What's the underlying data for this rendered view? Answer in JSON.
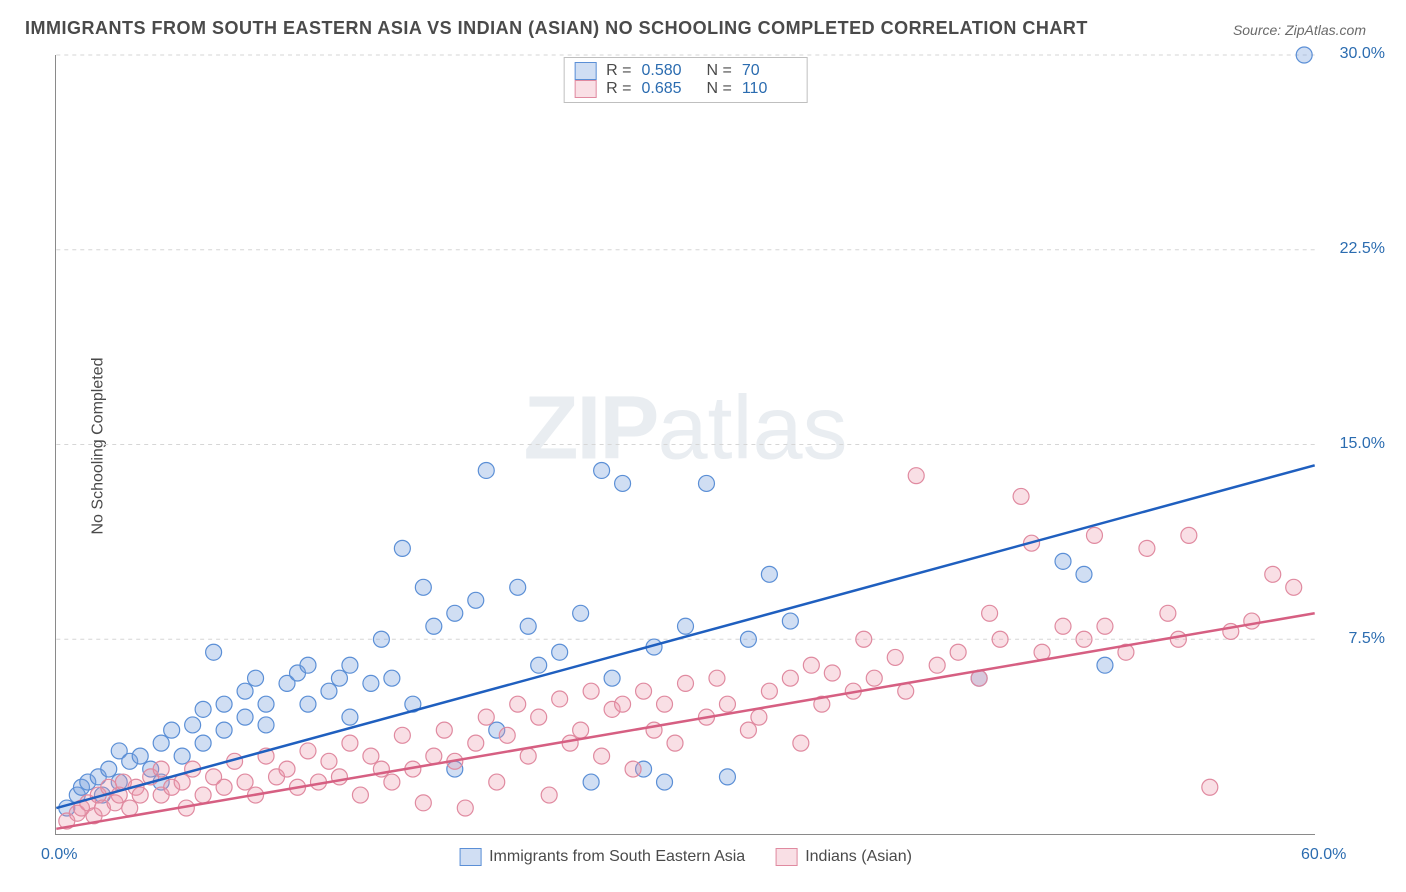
{
  "title": "IMMIGRANTS FROM SOUTH EASTERN ASIA VS INDIAN (ASIAN) NO SCHOOLING COMPLETED CORRELATION CHART",
  "source": "Source: ZipAtlas.com",
  "y_axis_label": "No Schooling Completed",
  "watermark_text_bold": "ZIP",
  "watermark_text_light": "atlas",
  "chart": {
    "type": "scatter",
    "xlim": [
      0,
      60
    ],
    "ylim": [
      0,
      30
    ],
    "x_ticks": [
      {
        "v": 0,
        "label": "0.0%"
      },
      {
        "v": 60,
        "label": "60.0%"
      }
    ],
    "y_ticks": [
      {
        "v": 7.5,
        "label": "7.5%"
      },
      {
        "v": 15,
        "label": "15.0%"
      },
      {
        "v": 22.5,
        "label": "22.5%"
      },
      {
        "v": 30,
        "label": "30.0%"
      }
    ],
    "grid_color": "#d6d6d6",
    "background_color": "#ffffff",
    "marker_radius": 8,
    "marker_stroke_width": 1.2,
    "line_width": 2.5,
    "series": [
      {
        "name": "Immigrants from South Eastern Asia",
        "fill": "rgba(120,160,220,0.35)",
        "stroke": "#5b8fd6",
        "line_color": "#1f5fbf",
        "R": "0.580",
        "N": "70",
        "trend": {
          "x1": 0,
          "y1": 1.0,
          "x2": 60,
          "y2": 14.2
        },
        "points": [
          [
            0.5,
            1.0
          ],
          [
            1,
            1.5
          ],
          [
            1.2,
            1.8
          ],
          [
            1.5,
            2.0
          ],
          [
            2,
            2.2
          ],
          [
            2.2,
            1.5
          ],
          [
            2.5,
            2.5
          ],
          [
            3,
            2.0
          ],
          [
            3,
            3.2
          ],
          [
            3.5,
            2.8
          ],
          [
            4,
            3.0
          ],
          [
            4.5,
            2.5
          ],
          [
            5,
            3.5
          ],
          [
            5,
            2.0
          ],
          [
            5.5,
            4.0
          ],
          [
            6,
            3.0
          ],
          [
            6.5,
            4.2
          ],
          [
            7,
            3.5
          ],
          [
            7,
            4.8
          ],
          [
            7.5,
            7.0
          ],
          [
            8,
            4.0
          ],
          [
            8,
            5.0
          ],
          [
            9,
            5.5
          ],
          [
            9,
            4.5
          ],
          [
            9.5,
            6.0
          ],
          [
            10,
            5.0
          ],
          [
            10,
            4.2
          ],
          [
            11,
            5.8
          ],
          [
            11.5,
            6.2
          ],
          [
            12,
            5.0
          ],
          [
            12,
            6.5
          ],
          [
            13,
            5.5
          ],
          [
            13.5,
            6.0
          ],
          [
            14,
            6.5
          ],
          [
            14,
            4.5
          ],
          [
            15,
            5.8
          ],
          [
            15.5,
            7.5
          ],
          [
            16,
            6.0
          ],
          [
            16.5,
            11.0
          ],
          [
            17,
            5.0
          ],
          [
            17.5,
            9.5
          ],
          [
            18,
            8.0
          ],
          [
            19,
            8.5
          ],
          [
            19,
            2.5
          ],
          [
            20,
            9.0
          ],
          [
            20.5,
            14.0
          ],
          [
            21,
            4.0
          ],
          [
            22,
            9.5
          ],
          [
            22.5,
            8.0
          ],
          [
            23,
            6.5
          ],
          [
            24,
            7.0
          ],
          [
            25,
            8.5
          ],
          [
            25.5,
            2.0
          ],
          [
            26,
            14.0
          ],
          [
            26.5,
            6.0
          ],
          [
            27,
            13.5
          ],
          [
            28,
            2.5
          ],
          [
            28.5,
            7.2
          ],
          [
            29,
            2.0
          ],
          [
            30,
            8.0
          ],
          [
            31,
            13.5
          ],
          [
            32,
            2.2
          ],
          [
            33,
            7.5
          ],
          [
            34,
            10.0
          ],
          [
            35,
            8.2
          ],
          [
            44,
            6.0
          ],
          [
            48,
            10.5
          ],
          [
            49,
            10.0
          ],
          [
            50,
            6.5
          ],
          [
            59.5,
            30.0
          ]
        ]
      },
      {
        "name": "Indians (Asian)",
        "fill": "rgba(235,150,170,0.30)",
        "stroke": "#e08aa0",
        "line_color": "#d65f82",
        "R": "0.685",
        "N": "110",
        "trend": {
          "x1": 0,
          "y1": 0.2,
          "x2": 60,
          "y2": 8.5
        },
        "points": [
          [
            0.5,
            0.5
          ],
          [
            1,
            0.8
          ],
          [
            1.2,
            1.0
          ],
          [
            1.5,
            1.2
          ],
          [
            1.8,
            0.7
          ],
          [
            2,
            1.5
          ],
          [
            2.2,
            1.0
          ],
          [
            2.5,
            1.8
          ],
          [
            2.8,
            1.2
          ],
          [
            3,
            1.5
          ],
          [
            3.2,
            2.0
          ],
          [
            3.5,
            1.0
          ],
          [
            3.8,
            1.8
          ],
          [
            4,
            1.5
          ],
          [
            4.5,
            2.2
          ],
          [
            5,
            1.5
          ],
          [
            5,
            2.5
          ],
          [
            5.5,
            1.8
          ],
          [
            6,
            2.0
          ],
          [
            6.2,
            1.0
          ],
          [
            6.5,
            2.5
          ],
          [
            7,
            1.5
          ],
          [
            7.5,
            2.2
          ],
          [
            8,
            1.8
          ],
          [
            8.5,
            2.8
          ],
          [
            9,
            2.0
          ],
          [
            9.5,
            1.5
          ],
          [
            10,
            3.0
          ],
          [
            10.5,
            2.2
          ],
          [
            11,
            2.5
          ],
          [
            11.5,
            1.8
          ],
          [
            12,
            3.2
          ],
          [
            12.5,
            2.0
          ],
          [
            13,
            2.8
          ],
          [
            13.5,
            2.2
          ],
          [
            14,
            3.5
          ],
          [
            14.5,
            1.5
          ],
          [
            15,
            3.0
          ],
          [
            15.5,
            2.5
          ],
          [
            16,
            2.0
          ],
          [
            16.5,
            3.8
          ],
          [
            17,
            2.5
          ],
          [
            17.5,
            1.2
          ],
          [
            18,
            3.0
          ],
          [
            18.5,
            4.0
          ],
          [
            19,
            2.8
          ],
          [
            19.5,
            1.0
          ],
          [
            20,
            3.5
          ],
          [
            20.5,
            4.5
          ],
          [
            21,
            2.0
          ],
          [
            21.5,
            3.8
          ],
          [
            22,
            5.0
          ],
          [
            22.5,
            3.0
          ],
          [
            23,
            4.5
          ],
          [
            23.5,
            1.5
          ],
          [
            24,
            5.2
          ],
          [
            24.5,
            3.5
          ],
          [
            25,
            4.0
          ],
          [
            25.5,
            5.5
          ],
          [
            26,
            3.0
          ],
          [
            26.5,
            4.8
          ],
          [
            27,
            5.0
          ],
          [
            27.5,
            2.5
          ],
          [
            28,
            5.5
          ],
          [
            28.5,
            4.0
          ],
          [
            29,
            5.0
          ],
          [
            29.5,
            3.5
          ],
          [
            30,
            5.8
          ],
          [
            31,
            4.5
          ],
          [
            31.5,
            6.0
          ],
          [
            32,
            5.0
          ],
          [
            33,
            4.0
          ],
          [
            33.5,
            4.5
          ],
          [
            34,
            5.5
          ],
          [
            35,
            6.0
          ],
          [
            35.5,
            3.5
          ],
          [
            36,
            6.5
          ],
          [
            36.5,
            5.0
          ],
          [
            37,
            6.2
          ],
          [
            38,
            5.5
          ],
          [
            38.5,
            7.5
          ],
          [
            39,
            6.0
          ],
          [
            40,
            6.8
          ],
          [
            40.5,
            5.5
          ],
          [
            41,
            13.8
          ],
          [
            42,
            6.5
          ],
          [
            43,
            7.0
          ],
          [
            44,
            6.0
          ],
          [
            44.5,
            8.5
          ],
          [
            45,
            7.5
          ],
          [
            46,
            13.0
          ],
          [
            46.5,
            11.2
          ],
          [
            47,
            7.0
          ],
          [
            48,
            8.0
          ],
          [
            49,
            7.5
          ],
          [
            49.5,
            11.5
          ],
          [
            50,
            8.0
          ],
          [
            51,
            7.0
          ],
          [
            52,
            11.0
          ],
          [
            53,
            8.5
          ],
          [
            53.5,
            7.5
          ],
          [
            54,
            11.5
          ],
          [
            55,
            1.8
          ],
          [
            56,
            7.8
          ],
          [
            57,
            8.2
          ],
          [
            58,
            10.0
          ],
          [
            59,
            9.5
          ]
        ]
      }
    ]
  },
  "legend_bottom": [
    {
      "label": "Immigrants from South Eastern Asia",
      "series": 0
    },
    {
      "label": "Indians (Asian)",
      "series": 1
    }
  ]
}
